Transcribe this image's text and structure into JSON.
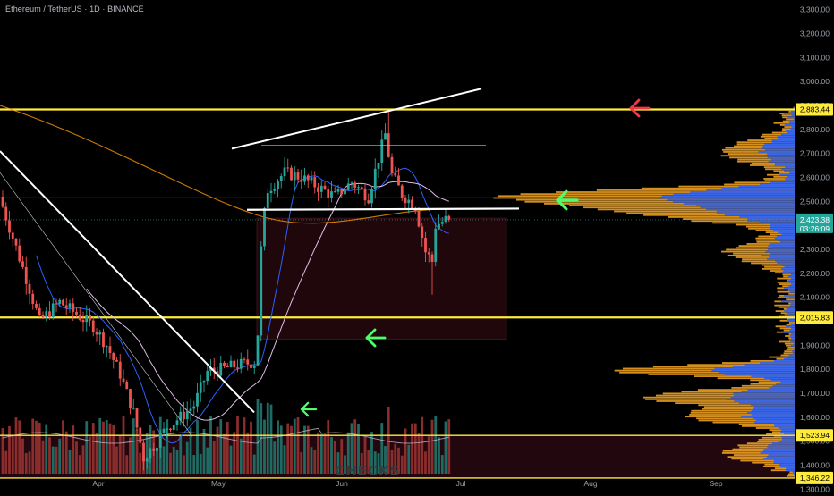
{
  "chart_title": "Ethereum / TetherUS · 1D · BINANCE",
  "watermark_text": "CHECKS",
  "colors": {
    "background": "#000000",
    "up_candle": "#26a69a",
    "down_candle": "#ef5350",
    "horizontal_level": "#ffeb3b",
    "resistance_line": "#f23645",
    "trendline": "#ffffff",
    "ma_orange": "#ff9800",
    "ma_blue": "#2962ff",
    "ma_pink": "#e1bee7",
    "volume_profile_up": "#2962ff",
    "volume_profile_vol": "#f9a825",
    "arrow_green": "#4cff6a",
    "arrow_red": "#f23645"
  },
  "chart_data": {
    "type": "candlestick",
    "title": "Ethereum / TetherUS · 1D · BINANCE",
    "symbol": "ETHUSDT",
    "timeframe": "1D",
    "exchange": "BINANCE",
    "xlabel": "",
    "ylabel": "",
    "x_ticks": [
      "Apr",
      "May",
      "Jun",
      "Jul",
      "Aug",
      "Sep"
    ],
    "y_ticks": [
      1300,
      1400,
      1500,
      1600,
      1700,
      1800,
      1900,
      2000,
      2100,
      2200,
      2300,
      2400,
      2500,
      2600,
      2700,
      2800,
      2900,
      3000,
      3100,
      3200,
      3300
    ],
    "y_tick_labels": [
      "1,300.00",
      "1,400.00",
      "1,500.00",
      "1,600.00",
      "1,700.00",
      "1,800.00",
      "1,900.00",
      "2,000.00",
      "2,100.00",
      "2,200.00",
      "2,300.00",
      "2,400.00",
      "2,500.00",
      "2,600.00",
      "2,700.00",
      "2,800.00",
      "2,900.00",
      "3,000.00",
      "3,100.00",
      "3,200.00",
      "3,300.00"
    ],
    "ylim": [
      1290,
      3340
    ],
    "price_labels": [
      {
        "value": 2883.44,
        "text": "2,883.44",
        "color": "#ffeb3b"
      },
      {
        "value": 2423.38,
        "text": "2,423.38",
        "countdown": "03:26:09",
        "color": "#26a69a"
      },
      {
        "value": 2015.83,
        "text": "2,015.83",
        "color": "#ffeb3b"
      },
      {
        "value": 1523.94,
        "text": "1,523.94",
        "color": "#ffeb3b"
      },
      {
        "value": 1346.22,
        "text": "1,346.22",
        "color": "#ffeb3b"
      }
    ],
    "horizontal_levels": [
      2883.44,
      2015.83,
      1523.94,
      1346.22
    ],
    "resistance_level": 2515,
    "last_price": 2423.38,
    "key_points": [
      {
        "date": "Apr 9",
        "low": 1385
      },
      {
        "date": "May 8",
        "breakout_close": 2200
      },
      {
        "date": "Jun 11",
        "high": 2880
      },
      {
        "date": "Jun 22",
        "low": 2111
      },
      {
        "date": "Jun 26",
        "close": 2423.38
      }
    ]
  }
}
